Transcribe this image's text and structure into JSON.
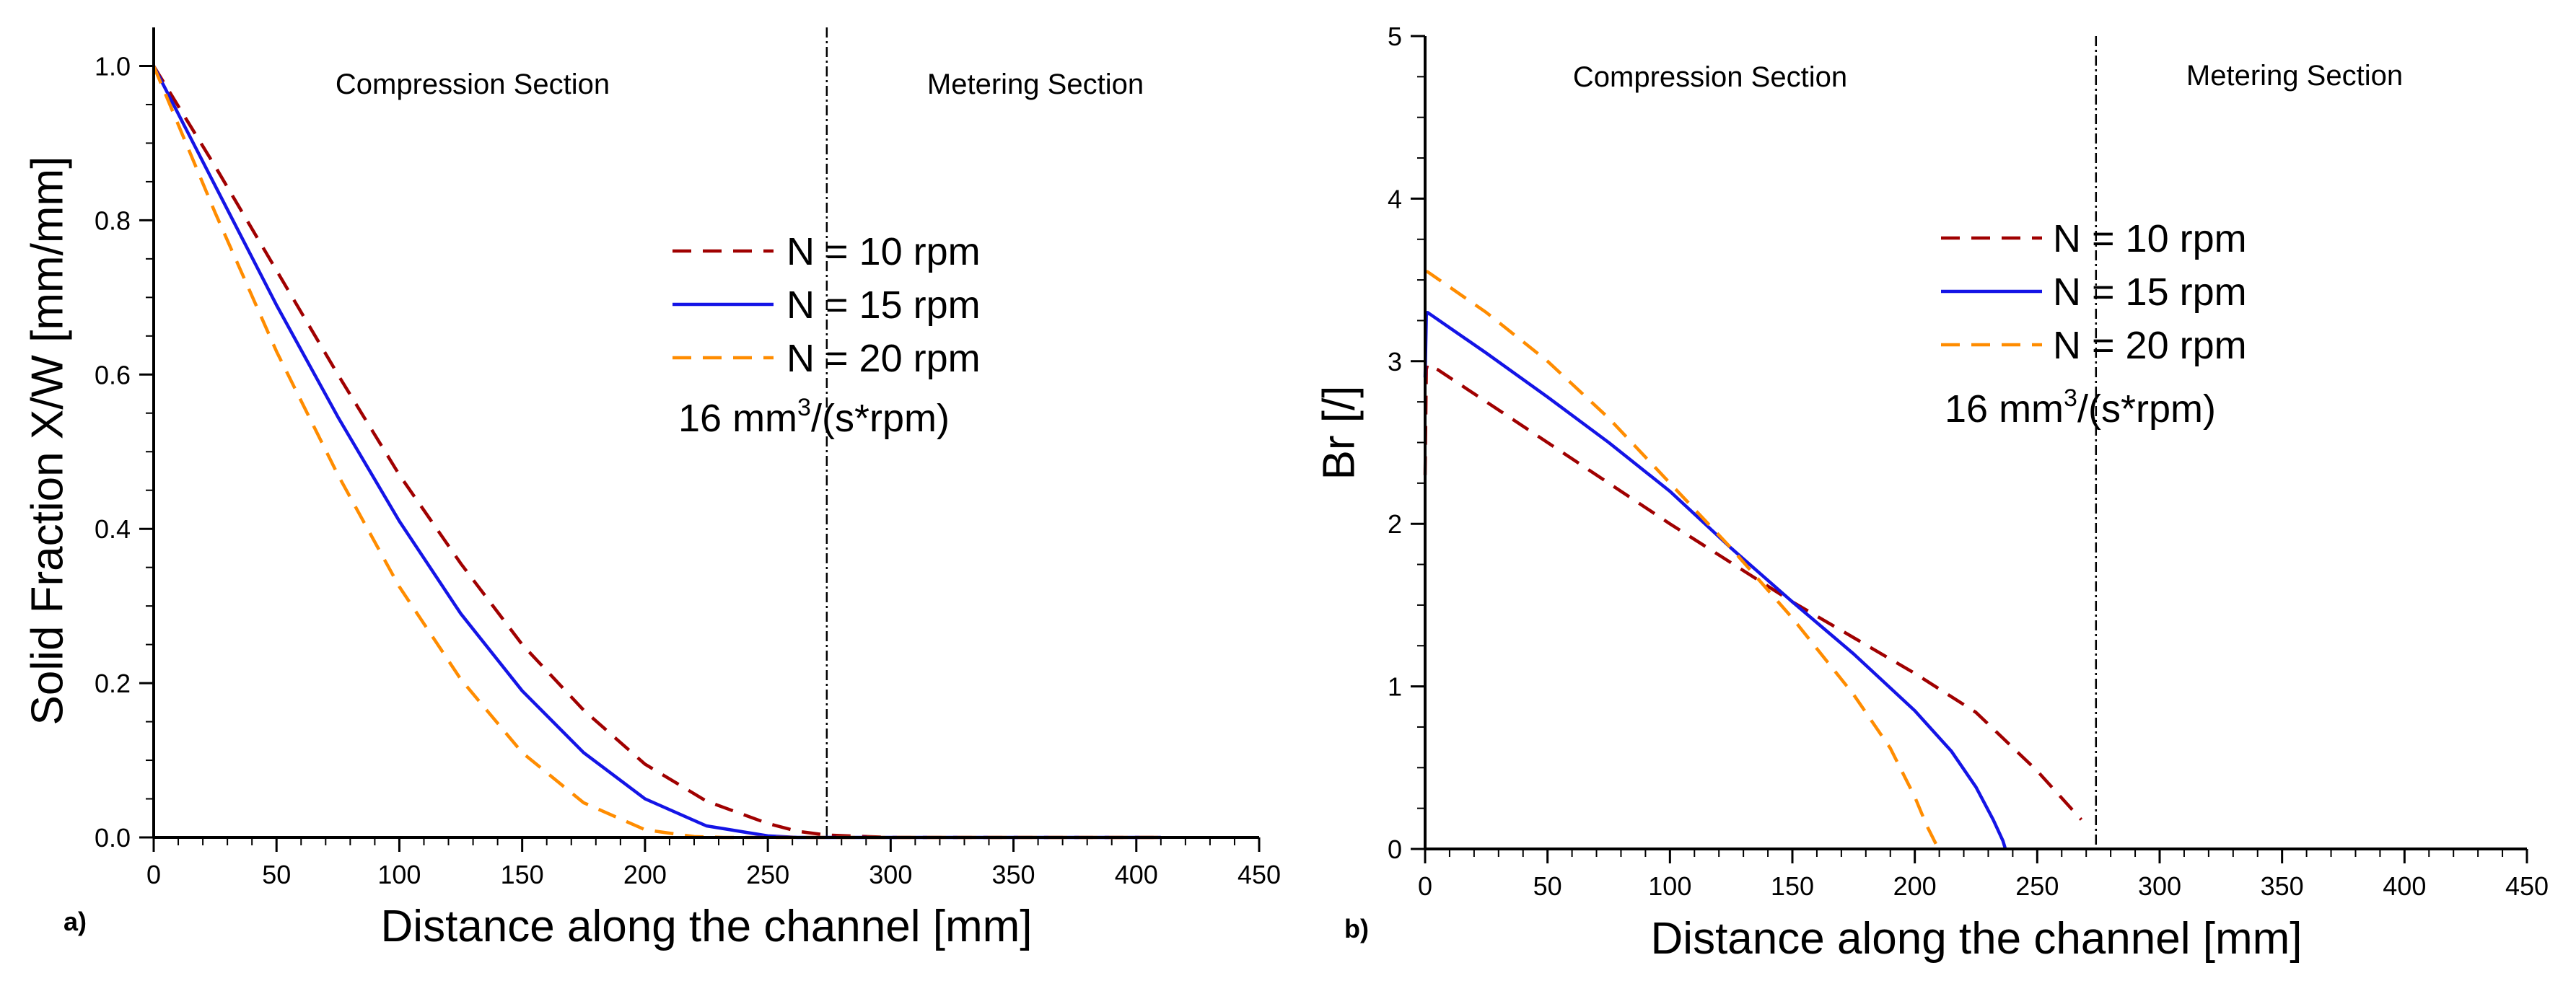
{
  "chart_data": [
    {
      "type": "line",
      "panel_label": "a)",
      "xlabel": "Distance along the channel [mm]",
      "ylabel": "Solid Fraction X/W [mm/mm]",
      "xlim": [
        0,
        450
      ],
      "ylim": [
        0,
        1.05
      ],
      "xticks": [
        0,
        50,
        100,
        150,
        200,
        250,
        300,
        350,
        400,
        450
      ],
      "yticks": [
        0.0,
        0.2,
        0.4,
        0.6,
        0.8,
        1.0
      ],
      "ytick_labels": [
        "0.0",
        "0.2",
        "0.4",
        "0.6",
        "0.8",
        "1.0"
      ],
      "section_boundary_x": 274,
      "sections": [
        "Compression Section",
        "Metering Section"
      ],
      "annotation": {
        "text": "16 mm",
        "superscript": "3",
        "suffix": "/(s*rpm)"
      },
      "series": [
        {
          "name": "N = 10 rpm",
          "color": "#a00000",
          "dash": "dashed",
          "x": [
            0,
            25,
            50,
            75,
            100,
            125,
            150,
            175,
            200,
            225,
            250,
            262,
            274,
            300,
            350,
            400,
            410
          ],
          "y": [
            1.0,
            0.87,
            0.735,
            0.6,
            0.47,
            0.355,
            0.25,
            0.165,
            0.095,
            0.047,
            0.018,
            0.008,
            0.003,
            0.0,
            0.0,
            0.0,
            0.0
          ]
        },
        {
          "name": "N = 15 rpm",
          "color": "#1414e6",
          "dash": "solid",
          "x": [
            0,
            25,
            50,
            75,
            100,
            125,
            150,
            175,
            200,
            225,
            250,
            262,
            300,
            350,
            400,
            410
          ],
          "y": [
            1.0,
            0.845,
            0.69,
            0.545,
            0.41,
            0.29,
            0.19,
            0.11,
            0.05,
            0.015,
            0.002,
            0.0,
            0.0,
            0.0,
            0.0,
            0.0
          ]
        },
        {
          "name": "N = 20 rpm",
          "color": "#ff8c00",
          "dash": "dashed",
          "x": [
            0,
            25,
            50,
            75,
            100,
            125,
            150,
            175,
            200,
            220,
            232,
            250,
            300,
            350,
            400,
            410
          ],
          "y": [
            1.0,
            0.81,
            0.63,
            0.47,
            0.325,
            0.205,
            0.11,
            0.045,
            0.01,
            0.001,
            0.0,
            0.0,
            0.0,
            0.0,
            0.0,
            0.0
          ]
        }
      ]
    },
    {
      "type": "line",
      "panel_label": "b)",
      "xlabel": "Distance along the channel [mm]",
      "ylabel": "Br [/]",
      "xlim": [
        0,
        450
      ],
      "ylim": [
        0,
        5
      ],
      "xticks": [
        0,
        50,
        100,
        150,
        200,
        250,
        300,
        350,
        400,
        450
      ],
      "yticks": [
        0,
        1,
        2,
        3,
        4,
        5
      ],
      "ytick_labels": [
        "0",
        "1",
        "2",
        "3",
        "4",
        "5"
      ],
      "section_boundary_x": 274,
      "sections": [
        "Compression Section",
        "Metering Section"
      ],
      "annotation": {
        "text": "16 mm",
        "superscript": "3",
        "suffix": "/(s*rpm)"
      },
      "series": [
        {
          "name": "N = 10 rpm",
          "color": "#a00000",
          "dash": "dashed",
          "x": [
            0,
            0.5,
            1,
            5,
            25,
            50,
            75,
            100,
            125,
            150,
            175,
            200,
            225,
            250,
            268
          ],
          "y": [
            2.3,
            2.95,
            2.98,
            2.95,
            2.75,
            2.5,
            2.25,
            2.0,
            1.76,
            1.52,
            1.3,
            1.08,
            0.84,
            0.48,
            0.18
          ]
        },
        {
          "name": "N = 15 rpm",
          "color": "#1414e6",
          "dash": "solid",
          "x": [
            0,
            0.5,
            1,
            25,
            50,
            75,
            100,
            125,
            150,
            175,
            200,
            215,
            225,
            232,
            236,
            237
          ],
          "y": [
            2.9,
            3.28,
            3.3,
            3.05,
            2.78,
            2.5,
            2.2,
            1.85,
            1.52,
            1.2,
            0.85,
            0.6,
            0.38,
            0.18,
            0.05,
            0.0
          ]
        },
        {
          "name": "N = 20 rpm",
          "color": "#ff8c00",
          "dash": "dashed",
          "x": [
            0,
            1,
            25,
            50,
            75,
            100,
            125,
            150,
            175,
            190,
            200,
            205,
            209
          ],
          "y": [
            3.55,
            3.55,
            3.3,
            3.0,
            2.65,
            2.25,
            1.85,
            1.42,
            0.95,
            0.62,
            0.32,
            0.14,
            0.02
          ]
        }
      ]
    }
  ]
}
